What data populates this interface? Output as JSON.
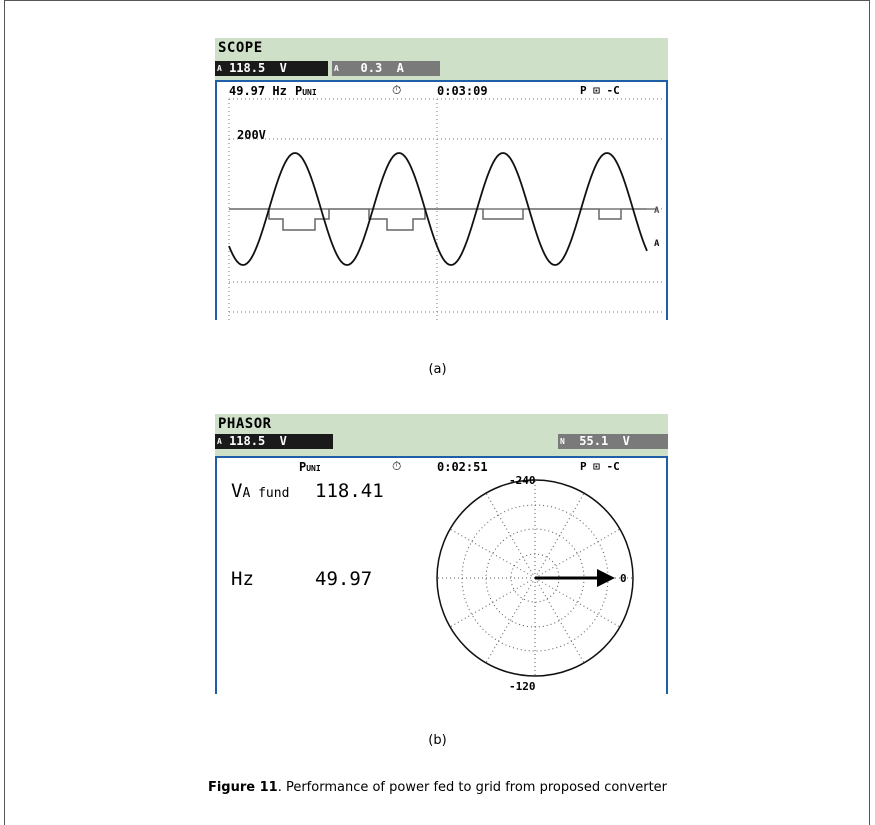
{
  "figure_a": {
    "title": "SCOPE",
    "readout_v_phase": "A",
    "readout_v": "118.5  V",
    "readout_a_phase": "A",
    "readout_a": "   0.3  A",
    "status": {
      "freq": "49.97 Hz",
      "mode": "P",
      "mode_sub": "UNI",
      "time": "0:03:09",
      "icons": "P ⊡ -C"
    },
    "scale_label": "200V",
    "trace_label_current": "A",
    "trace_label_voltage": "A",
    "caption": "(a)"
  },
  "figure_b": {
    "title": "PHASOR",
    "readout_v_phase": "A",
    "readout_v": "118.5  V",
    "readout_n_phase": "N",
    "readout_n": "  55.1  V",
    "status": {
      "mode": "P",
      "mode_sub": "UNI",
      "time": "0:02:51",
      "icons": "P ⊡ -C"
    },
    "vfund_label": "V",
    "vfund_sub": "A fund",
    "vfund_value": "118.41",
    "hz_label": "Hz",
    "hz_value": "49.97",
    "angle_top": "-240",
    "angle_bottom": "-120",
    "angle_right": "0",
    "caption": "(b)"
  },
  "figure_caption": {
    "label": "Figure 11",
    "text": ". Performance of power fed to grid from proposed converter"
  }
}
